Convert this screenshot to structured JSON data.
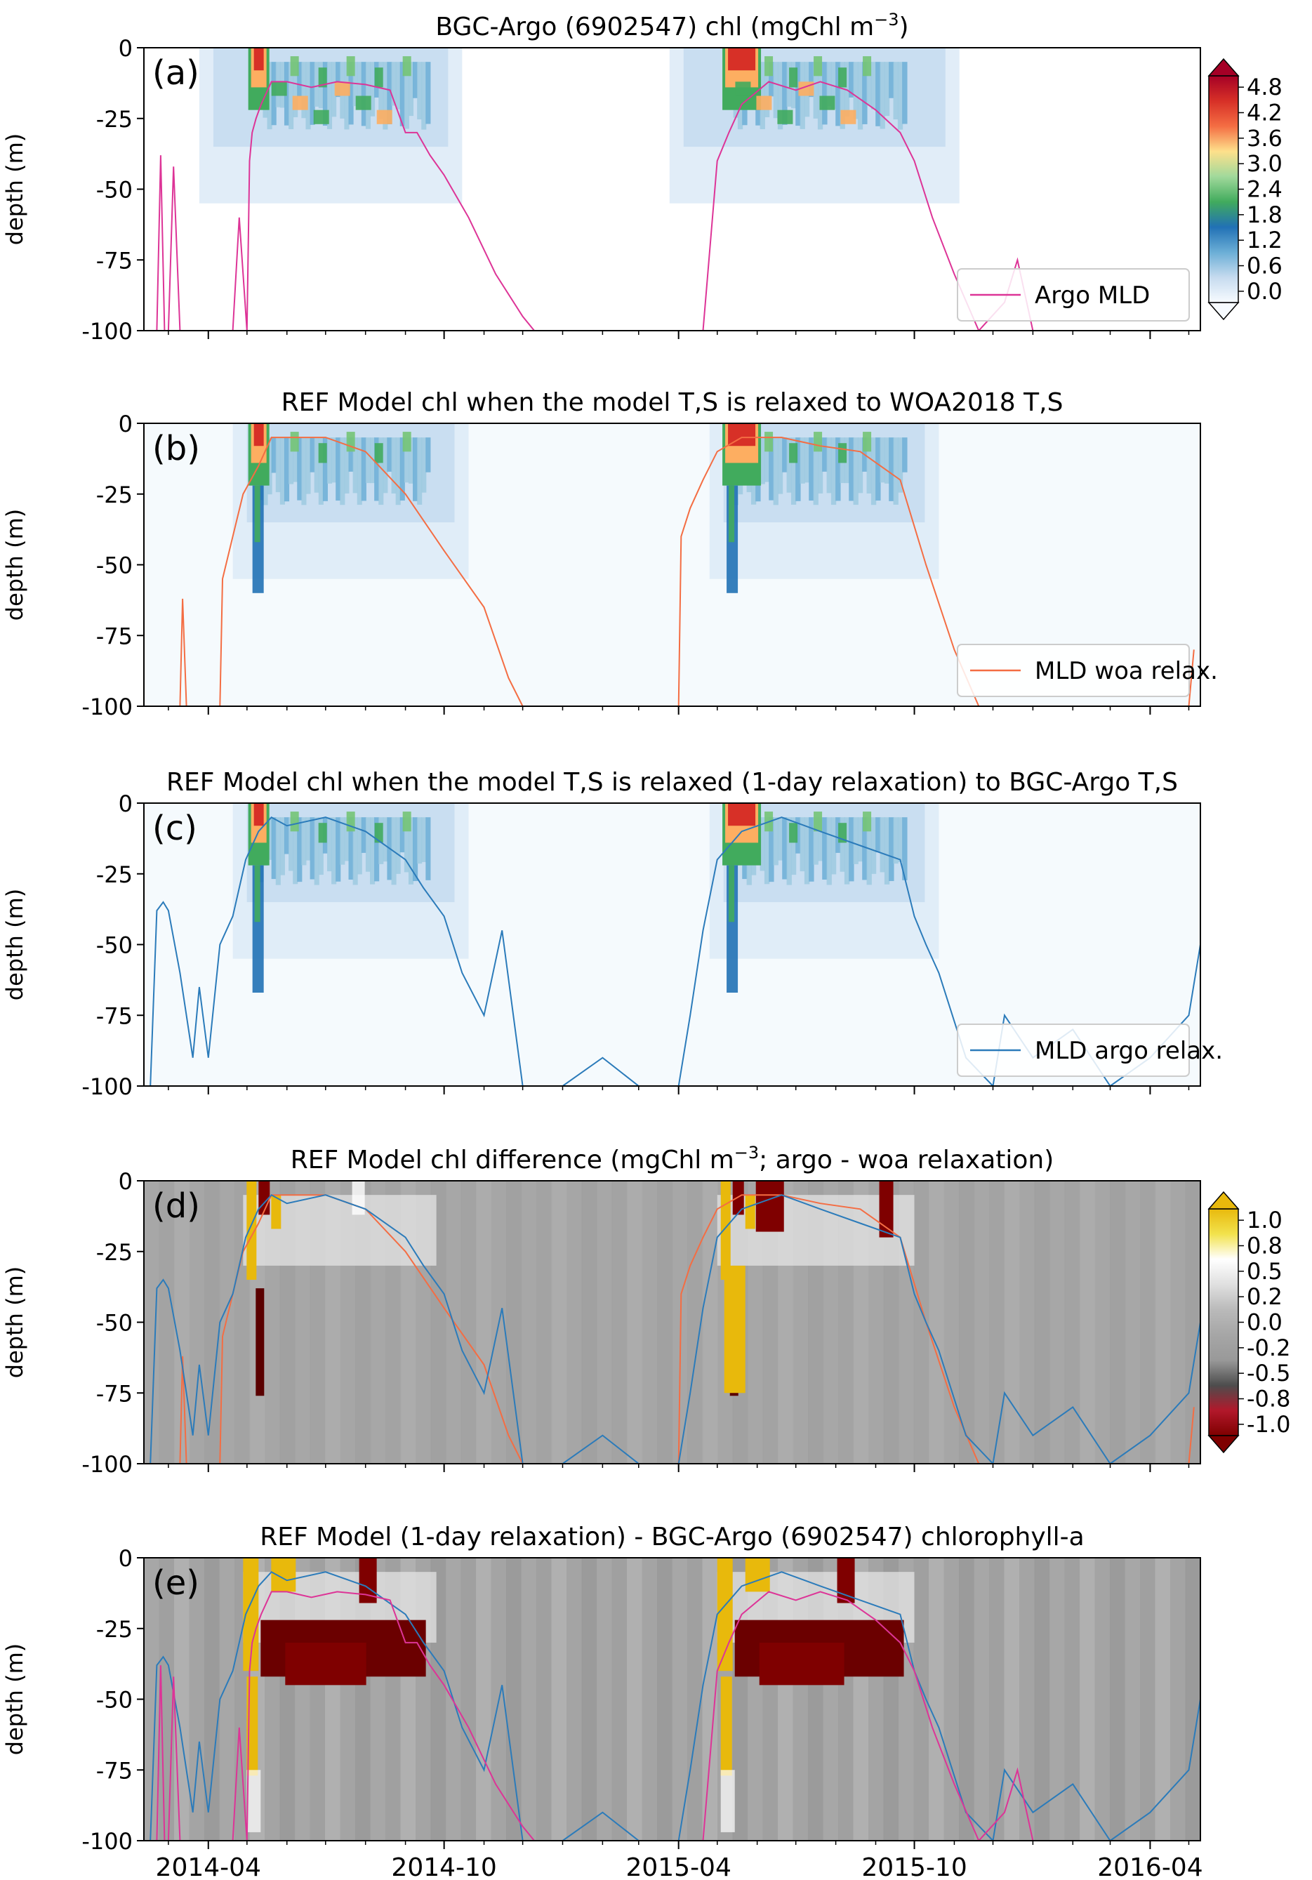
{
  "figure": {
    "ylabel": "depth (m)",
    "date_ticks": [
      "2014-04",
      "2014-10",
      "2015-04",
      "2015-10",
      "2016-04"
    ]
  },
  "chart_data": [
    {
      "type": "heatmap",
      "panel_label": "(a)",
      "title": "BGC-Argo (6902547) chl (mgChl m",
      "title_sup": "−3",
      "title_end": ")",
      "ylabel": "depth (m)",
      "ylim": [
        -100,
        0
      ],
      "y_ticks": [
        0,
        -25,
        -50,
        -75,
        -100
      ],
      "x_range": [
        "2014-02-10",
        "2016-05-10"
      ],
      "colorbar": {
        "ticks": [
          "4.8",
          "4.2",
          "3.6",
          "3.0",
          "2.4",
          "1.8",
          "1.2",
          "0.6",
          "0.0"
        ],
        "range": [
          0.0,
          5.1
        ],
        "colors": [
          "#f7fbff",
          "#c6dbef",
          "#6baed6",
          "#2171b5",
          "#41ab5d",
          "#a1d99b",
          "#fee08b",
          "#f46d43",
          "#d73027",
          "#a50026"
        ]
      },
      "bloom_periods": [
        {
          "start": "2014-04-25",
          "end": "2014-09-15",
          "peak_depth": -20,
          "max_chl": 5.0
        },
        {
          "start": "2015-05-01",
          "end": "2015-10-01",
          "peak_depth": -25,
          "max_chl": 5.0
        }
      ],
      "series": [
        {
          "name": "Argo MLD",
          "color": "#dd3497",
          "x": [
            "2014-02-20",
            "2014-02-23",
            "2014-02-26",
            "2014-03-01",
            "2014-03-05",
            "2014-03-10",
            "2014-04-01",
            "2014-04-20",
            "2014-04-25",
            "2014-05-01",
            "2014-05-03",
            "2014-05-05",
            "2014-05-08",
            "2014-05-12",
            "2014-05-20",
            "2014-06-01",
            "2014-06-20",
            "2014-07-10",
            "2014-08-01",
            "2014-08-20",
            "2014-09-01",
            "2014-09-10",
            "2014-09-20",
            "2014-10-01",
            "2014-10-20",
            "2014-11-10",
            "2014-12-01",
            "2014-12-10",
            "2015-01-10",
            "2015-02-10",
            "2015-04-20",
            "2015-05-01",
            "2015-05-10",
            "2015-05-20",
            "2015-06-10",
            "2015-07-01",
            "2015-07-20",
            "2015-08-10",
            "2015-09-01",
            "2015-09-20",
            "2015-10-01",
            "2015-10-15",
            "2015-11-01",
            "2015-11-20",
            "2015-12-10",
            "2015-12-20",
            "2016-01-01"
          ],
          "y": [
            -100,
            -38,
            -100,
            -100,
            -42,
            -100,
            -100,
            -100,
            -60,
            -100,
            -40,
            -30,
            -25,
            -20,
            -12,
            -12,
            -14,
            -12,
            -13,
            -15,
            -30,
            -30,
            -38,
            -45,
            -60,
            -80,
            -95,
            -100,
            -100,
            -100,
            -100,
            -40,
            -30,
            -20,
            -12,
            -15,
            -12,
            -15,
            -22,
            -30,
            -40,
            -60,
            -80,
            -100,
            -90,
            -75,
            -100
          ]
        }
      ],
      "legend_position": "lower-right"
    },
    {
      "type": "heatmap",
      "panel_label": "(b)",
      "title": "REF Model chl when the model T,S is relaxed to WOA2018 T,S",
      "ylabel": "depth (m)",
      "ylim": [
        -100,
        0
      ],
      "y_ticks": [
        0,
        -25,
        -50,
        -75,
        -100
      ],
      "series": [
        {
          "name": "MLD woa relax.",
          "color": "#f46d43",
          "x": [
            "2014-03-10",
            "2014-03-12",
            "2014-03-15",
            "2014-04-10",
            "2014-04-12",
            "2014-04-20",
            "2014-04-28",
            "2014-05-10",
            "2014-05-20",
            "2014-06-01",
            "2014-07-01",
            "2014-08-01",
            "2014-09-01",
            "2014-10-01",
            "2014-11-01",
            "2014-11-20",
            "2014-12-01",
            "2015-04-01",
            "2015-04-03",
            "2015-04-10",
            "2015-04-20",
            "2015-05-01",
            "2015-05-20",
            "2015-06-20",
            "2015-07-20",
            "2015-08-20",
            "2015-09-20",
            "2015-10-10",
            "2015-11-01",
            "2015-11-20",
            "2015-12-01",
            "2016-05-01",
            "2016-05-05"
          ],
          "y": [
            -100,
            -62,
            -100,
            -100,
            -55,
            -40,
            -25,
            -15,
            -5,
            -5,
            -5,
            -10,
            -25,
            -45,
            -65,
            -90,
            -100,
            -100,
            -40,
            -30,
            -20,
            -10,
            -5,
            -5,
            -8,
            -10,
            -20,
            -50,
            -80,
            -100,
            -100,
            -100,
            -80
          ]
        }
      ],
      "legend_position": "lower-right"
    },
    {
      "type": "heatmap",
      "panel_label": "(c)",
      "title": "REF Model chl when the model T,S is relaxed (1-day relaxation) to BGC-Argo T,S",
      "ylabel": "depth (m)",
      "ylim": [
        -100,
        0
      ],
      "y_ticks": [
        0,
        -25,
        -50,
        -75,
        -100
      ],
      "series": [
        {
          "name": "MLD argo relax.",
          "color": "#2b7bba",
          "x": [
            "2014-02-15",
            "2014-02-20",
            "2014-02-25",
            "2014-03-01",
            "2014-03-10",
            "2014-03-20",
            "2014-03-25",
            "2014-04-01",
            "2014-04-10",
            "2014-04-20",
            "2014-04-30",
            "2014-05-10",
            "2014-05-20",
            "2014-06-01",
            "2014-07-01",
            "2014-08-01",
            "2014-09-01",
            "2014-09-15",
            "2014-10-01",
            "2014-10-15",
            "2014-11-01",
            "2014-11-15",
            "2014-12-01",
            "2015-01-01",
            "2015-02-01",
            "2015-03-01",
            "2015-04-01",
            "2015-04-10",
            "2015-04-20",
            "2015-05-01",
            "2015-05-20",
            "2015-06-20",
            "2015-07-20",
            "2015-08-20",
            "2015-09-20",
            "2015-10-01",
            "2015-10-10",
            "2015-10-20",
            "2015-11-10",
            "2015-12-01",
            "2015-12-10",
            "2016-01-01",
            "2016-02-01",
            "2016-03-01",
            "2016-04-01",
            "2016-05-01",
            "2016-05-10"
          ],
          "y": [
            -100,
            -38,
            -35,
            -38,
            -60,
            -90,
            -65,
            -90,
            -50,
            -40,
            -20,
            -10,
            -5,
            -8,
            -5,
            -10,
            -20,
            -30,
            -40,
            -60,
            -75,
            -45,
            -100,
            -100,
            -90,
            -100,
            -100,
            -75,
            -45,
            -20,
            -10,
            -5,
            -10,
            -15,
            -20,
            -40,
            -50,
            -60,
            -90,
            -100,
            -75,
            -90,
            -80,
            -100,
            -90,
            -75,
            -50
          ]
        }
      ],
      "legend_position": "lower-right"
    },
    {
      "type": "heatmap",
      "panel_label": "(d)",
      "title": "REF Model chl difference (mgChl m",
      "title_sup": "−3",
      "title_end": "; argo - woa relaxation)",
      "ylabel": "depth (m)",
      "ylim": [
        -100,
        0
      ],
      "y_ticks": [
        0,
        -25,
        -50,
        -75,
        -100
      ],
      "colorbar": {
        "ticks": [
          "1.0",
          "0.8",
          "0.5",
          "0.2",
          "0.0",
          "-0.2",
          "-0.5",
          "-0.8",
          "-1.0"
        ],
        "range": [
          -1.0,
          1.0
        ],
        "colors": [
          "#7f0000",
          "#b2182b",
          "#4d4d4d",
          "#999999",
          "#a6a6a6",
          "#bababa",
          "#e0e0e0",
          "#ffffff",
          "#f2e24d",
          "#e8b90c"
        ]
      },
      "series": [
        {
          "name": "",
          "color": "#f46d43",
          "ref": "MLD woa relax."
        },
        {
          "name": "",
          "color": "#2b7bba",
          "ref": "MLD argo relax."
        }
      ]
    },
    {
      "type": "heatmap",
      "panel_label": "(e)",
      "title": "REF Model (1-day relaxation) - BGC-Argo (6902547) chlorophyll-a",
      "ylabel": "depth (m)",
      "ylim": [
        -100,
        0
      ],
      "y_ticks": [
        0,
        -25,
        -50,
        -75,
        -100
      ],
      "series": [
        {
          "name": "",
          "color": "#2b7bba",
          "ref": "MLD argo relax."
        },
        {
          "name": "",
          "color": "#dd3497",
          "ref": "Argo MLD"
        }
      ]
    }
  ]
}
